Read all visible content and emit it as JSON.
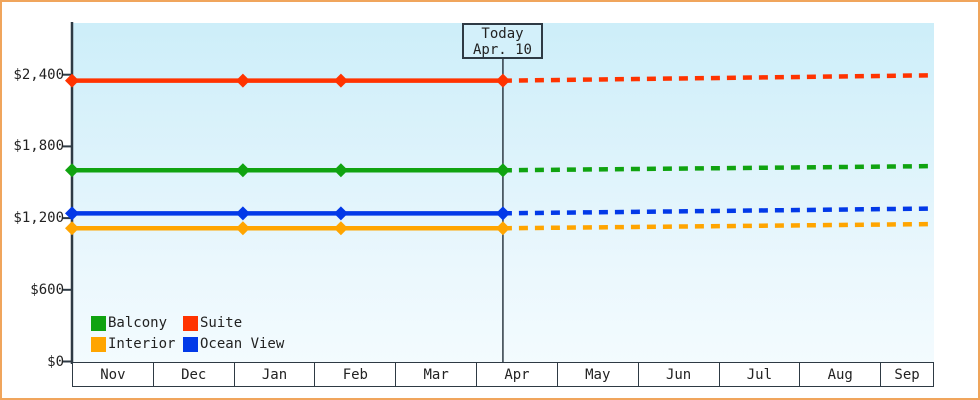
{
  "colors": {
    "frame_border": "#f0a55c",
    "axis": "#2e3a44",
    "text": "#222222",
    "today_box_bg": "#d3f0fa"
  },
  "chart_data": {
    "type": "line",
    "title": "",
    "xlabel": "",
    "ylabel": "",
    "x_axis": {
      "months": [
        "Nov",
        "Dec",
        "Jan",
        "Feb",
        "Mar",
        "Apr",
        "May",
        "Jun",
        "Jul",
        "Aug",
        "Sep"
      ]
    },
    "y_axis": {
      "tick_labels": [
        "$0",
        "$600",
        "$1,200",
        "$1,800",
        "$2,400"
      ],
      "tick_values": [
        0,
        600,
        1200,
        1800,
        2400
      ],
      "ylim": [
        0,
        2830
      ]
    },
    "today": {
      "line1": "Today",
      "line2": "Apr. 10",
      "month_position": 5.32
    },
    "series": [
      {
        "name": "Suite",
        "color": "#ff3300",
        "observed": {
          "month_x": [
            0,
            2.11,
            3.32,
            5.32
          ],
          "values": [
            2350,
            2350,
            2350,
            2350
          ]
        },
        "forecast": {
          "month_x": [
            5.32,
            10.63
          ],
          "values": [
            2350,
            2395
          ]
        }
      },
      {
        "name": "Balcony",
        "color": "#10a310",
        "observed": {
          "month_x": [
            0,
            2.11,
            3.32,
            5.32
          ],
          "values": [
            1600,
            1600,
            1600,
            1600
          ]
        },
        "forecast": {
          "month_x": [
            5.32,
            10.63
          ],
          "values": [
            1600,
            1635
          ]
        }
      },
      {
        "name": "Ocean View",
        "color": "#0239e8",
        "observed": {
          "month_x": [
            0,
            2.11,
            3.32,
            5.32
          ],
          "values": [
            1240,
            1240,
            1240,
            1240
          ]
        },
        "forecast": {
          "month_x": [
            5.32,
            10.63
          ],
          "values": [
            1240,
            1280
          ]
        }
      },
      {
        "name": "Interior",
        "color": "#ffa500",
        "observed": {
          "month_x": [
            0,
            2.11,
            3.32,
            5.32
          ],
          "values": [
            1115,
            1115,
            1115,
            1115
          ]
        },
        "forecast": {
          "month_x": [
            5.32,
            10.63
          ],
          "values": [
            1115,
            1150
          ]
        }
      }
    ],
    "legend": {
      "position": "bottom-left",
      "order": [
        "Balcony",
        "Suite",
        "Interior",
        "Ocean View"
      ]
    },
    "line_style": {
      "observed": "solid",
      "forecast": "dotted",
      "marker": "diamond"
    }
  }
}
